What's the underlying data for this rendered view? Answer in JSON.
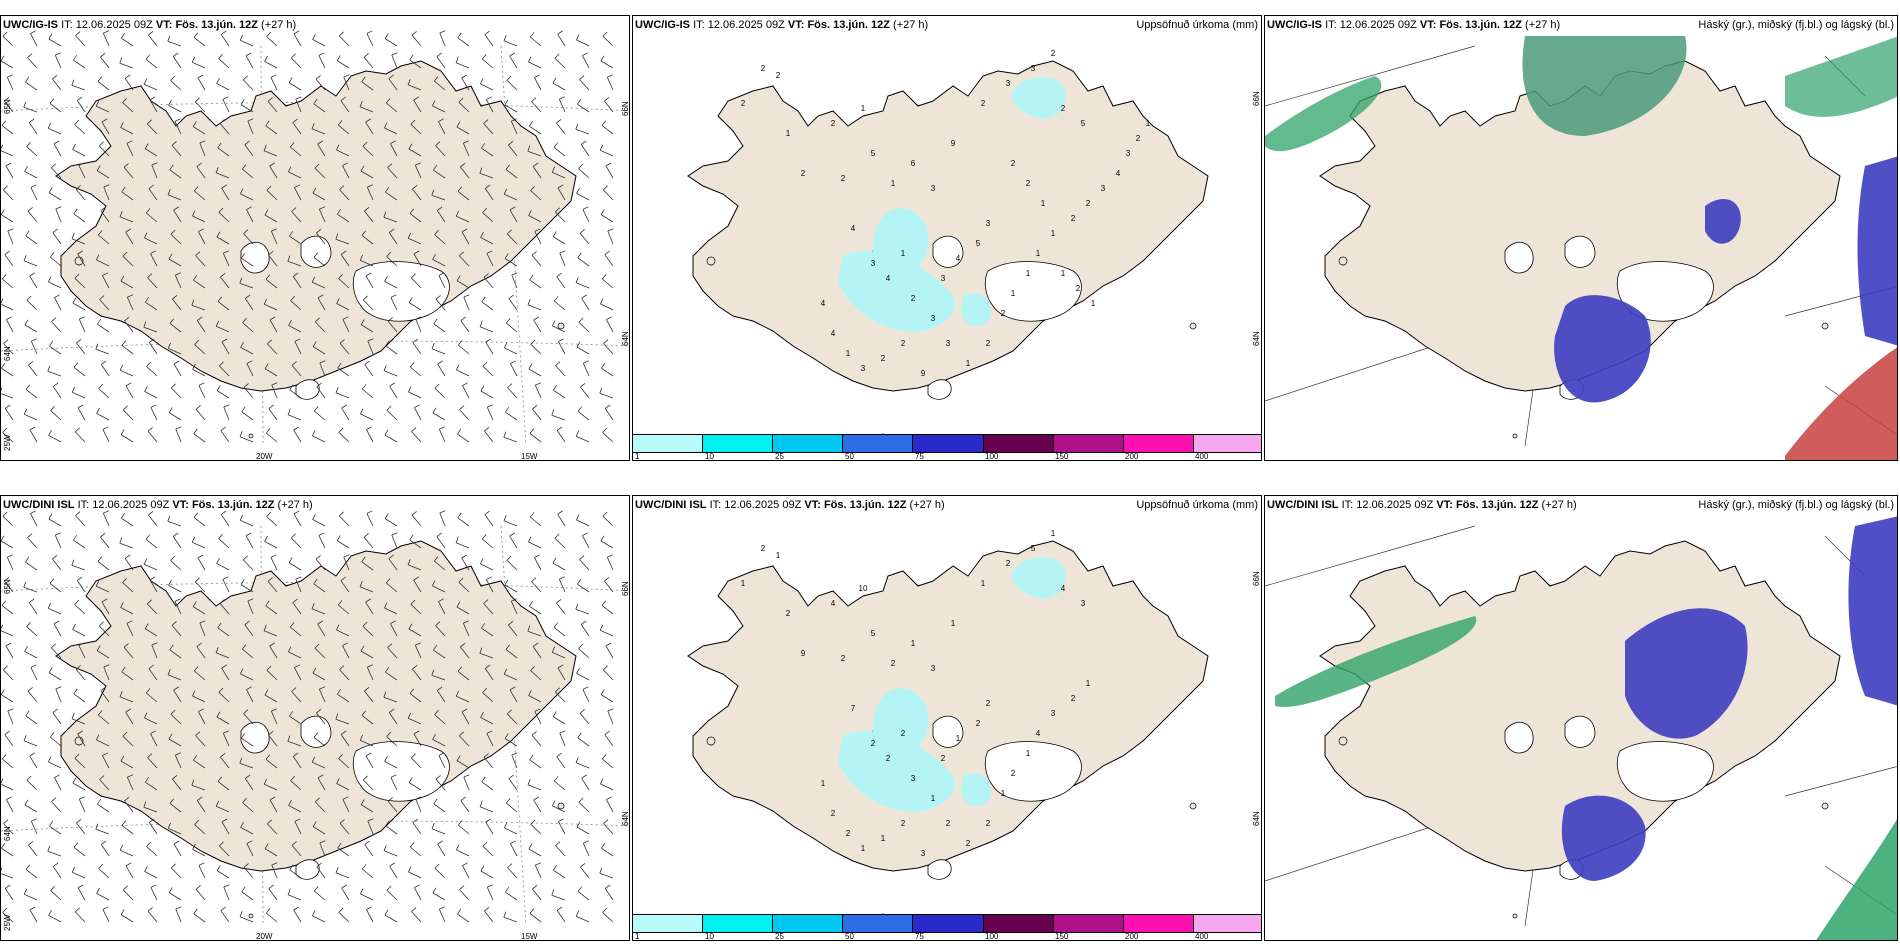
{
  "header_labels": {
    "it": "IT:",
    "vt": "VT:"
  },
  "rows": [
    {
      "model": "UWC/IG-IS",
      "it_time": "12.06.2025 09Z",
      "vt_time": "Fös. 13.jún. 12Z",
      "lead": "(+27 h)"
    },
    {
      "model": "UWC/DINI ISL",
      "it_time": "12.06.2025 09Z",
      "vt_time": "Fös. 13.jún. 12Z",
      "lead": "(+27 h)"
    }
  ],
  "precip_title": "Uppsöfnuð úrkoma (mm)",
  "cloud_title": "Háský (gr.), miðský (fj.bl.) og lágský (bl.)",
  "colorbar": {
    "labels": [
      "1",
      "10",
      "25",
      "50",
      "75",
      "100",
      "150",
      "200",
      "400"
    ],
    "colors": [
      "#b9fbfb",
      "#00f0f0",
      "#00c8f0",
      "#2c6ee8",
      "#2a2ac8",
      "#6a0050",
      "#b0108a",
      "#ff10b0",
      "#f5a8f0"
    ]
  },
  "wind_axes": {
    "lon_left": "20W",
    "lon_right": "15W",
    "lat_top": "65N",
    "lat_mid": "64N",
    "lat_bottom": "25W",
    "lat_right_top": "66N",
    "lat_right_mid": "64N"
  },
  "precip_axes": {
    "right_top": "66N",
    "right_mid": "64N"
  },
  "precip_values_top": [
    "2",
    "2",
    "2",
    "1",
    "2",
    "1",
    "2",
    "2",
    "5",
    "1",
    "6",
    "3",
    "9",
    "2",
    "3",
    "3",
    "2",
    "2",
    "5",
    "4",
    "3",
    "4",
    "1",
    "2",
    "3",
    "3",
    "4",
    "5",
    "3",
    "4",
    "4",
    "1",
    "3",
    "2",
    "2",
    "9",
    "3",
    "1",
    "2",
    "2",
    "1",
    "1",
    "1",
    "1",
    "2",
    "2",
    "3",
    "4",
    "3",
    "2",
    "1",
    "2",
    "2",
    "1",
    "1",
    "2",
    "1"
  ],
  "precip_values_bottom": [
    "2",
    "1",
    "1",
    "2",
    "4",
    "10",
    "9",
    "2",
    "5",
    "2",
    "1",
    "3",
    "1",
    "1",
    "2",
    "5",
    "1",
    "4",
    "3",
    "7",
    "2",
    "2",
    "2",
    "3",
    "1",
    "2",
    "1",
    "2",
    "2",
    "1",
    "2",
    "2",
    "1",
    "1",
    "2",
    "3",
    "2",
    "2",
    "2",
    "1",
    "2",
    "1",
    "4",
    "3",
    "2",
    "1"
  ],
  "colors": {
    "land": "#efe4d8",
    "coast": "#000000",
    "sea": "#ffffff",
    "precip_cyan": "#b5f4f4",
    "cloud_blue": "#3c3cc0",
    "cloud_green": "#2fa36a",
    "cloud_red": "#c84040"
  }
}
